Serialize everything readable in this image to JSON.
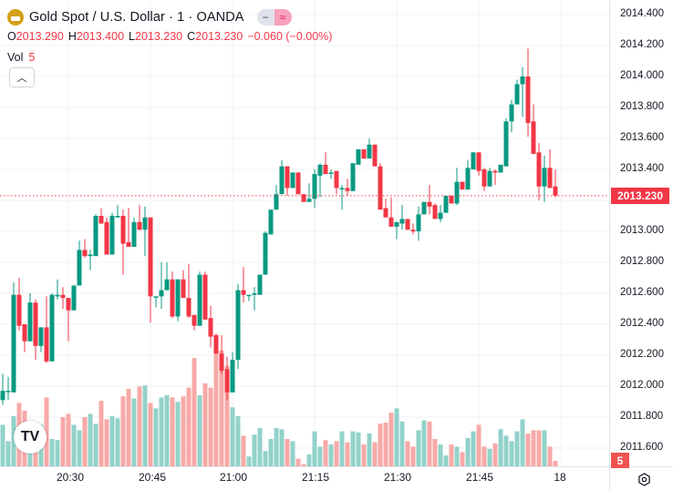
{
  "legend": {
    "title": "Gold Spot / U.S. Dollar · 1 · OANDA",
    "toggle_a": "−",
    "toggle_b": "≈",
    "ohlc": {
      "o_label": "O",
      "o": "2013.290",
      "h_label": "H",
      "h": "2013.400",
      "l_label": "L",
      "l": "2013.230",
      "c_label": "C",
      "c": "2013.230",
      "change": "−0.060 (−0.00%)"
    },
    "vol_label": "Vol",
    "vol_value": "5",
    "collapse_icon": "chevron-up-icon"
  },
  "price_axis": {
    "labels": [
      "2014.400",
      "2014.200",
      "2014.000",
      "2013.800",
      "2013.600",
      "2013.400",
      "2013.000",
      "2012.800",
      "2012.600",
      "2012.400",
      "2012.200",
      "2012.000",
      "2011.800",
      "2011.600"
    ],
    "last_price": "2013.230",
    "volume_badge": "5"
  },
  "time_axis": {
    "labels": [
      "20:30",
      "20:45",
      "21:00",
      "21:15",
      "21:30",
      "21:45",
      "18"
    ]
  },
  "logo_text": "TV",
  "colors": {
    "up": "#089981",
    "down": "#f23645",
    "vol_up": "#92d2ca",
    "vol_down": "#f7a9a7",
    "grid": "#f0f1f3"
  },
  "chart_data": {
    "type": "candlestick",
    "symbol": "Gold Spot / U.S. Dollar",
    "interval": "1",
    "ylim": [
      2011.5,
      2014.5
    ],
    "y_ticks": [
      2011.6,
      2011.8,
      2012.0,
      2012.2,
      2012.4,
      2012.6,
      2012.8,
      2013.0,
      2013.2,
      2013.4,
      2013.6,
      2013.8,
      2014.0,
      2014.2,
      2014.4
    ],
    "ohlc": [
      [
        2011.91,
        2012.08,
        2011.88,
        2011.97
      ],
      [
        2011.97,
        2012.06,
        2011.91,
        2011.97
      ],
      [
        2011.96,
        2012.67,
        2011.96,
        2012.59
      ],
      [
        2012.59,
        2012.7,
        2012.36,
        2012.39
      ],
      [
        2012.4,
        2012.4,
        2012.22,
        2012.29
      ],
      [
        2012.29,
        2012.6,
        2012.29,
        2012.54
      ],
      [
        2012.54,
        2012.56,
        2012.17,
        2012.26
      ],
      [
        2012.26,
        2012.38,
        2012.22,
        2012.38
      ],
      [
        2012.38,
        2012.58,
        2012.15,
        2012.16
      ],
      [
        2012.16,
        2012.6,
        2012.16,
        2012.59
      ],
      [
        2012.58,
        2012.69,
        2012.56,
        2012.59
      ],
      [
        2012.59,
        2012.64,
        2012.5,
        2012.57
      ],
      [
        2012.57,
        2012.57,
        2012.29,
        2012.49
      ],
      [
        2012.49,
        2012.65,
        2012.49,
        2012.65
      ],
      [
        2012.65,
        2012.94,
        2012.65,
        2012.88
      ],
      [
        2012.88,
        2012.95,
        2012.83,
        2012.84
      ],
      [
        2012.84,
        2012.88,
        2012.75,
        2012.85
      ],
      [
        2012.84,
        2013.11,
        2012.84,
        2013.1
      ],
      [
        2013.1,
        2013.15,
        2013.05,
        2013.05
      ],
      [
        2013.06,
        2013.09,
        2012.85,
        2012.85
      ],
      [
        2012.85,
        2013.12,
        2012.85,
        2013.1
      ],
      [
        2013.09,
        2013.17,
        2013.09,
        2013.1
      ],
      [
        2013.1,
        2013.14,
        2012.72,
        2012.92
      ],
      [
        2012.93,
        2013.15,
        2012.9,
        2012.9
      ],
      [
        2012.9,
        2013.09,
        2012.9,
        2013.06
      ],
      [
        2013.06,
        2013.17,
        2013.01,
        2013.01
      ],
      [
        2013.01,
        2013.16,
        2012.84,
        2013.09
      ],
      [
        2013.09,
        2013.09,
        2012.41,
        2012.58
      ],
      [
        2012.58,
        2012.58,
        2012.51,
        2012.58
      ],
      [
        2012.58,
        2012.8,
        2012.5,
        2012.62
      ],
      [
        2012.62,
        2012.8,
        2012.62,
        2012.69
      ],
      [
        2012.69,
        2012.74,
        2012.44,
        2012.45
      ],
      [
        2012.45,
        2012.69,
        2012.42,
        2012.69
      ],
      [
        2012.69,
        2012.75,
        2012.57,
        2012.57
      ],
      [
        2012.57,
        2012.79,
        2012.44,
        2012.45
      ],
      [
        2012.46,
        2012.46,
        2012.36,
        2012.39
      ],
      [
        2012.39,
        2012.74,
        2012.39,
        2012.72
      ],
      [
        2012.72,
        2012.74,
        2012.43,
        2012.43
      ],
      [
        2012.44,
        2012.52,
        2012.25,
        2012.32
      ],
      [
        2012.33,
        2012.34,
        2012.21,
        2012.21
      ],
      [
        2012.21,
        2012.33,
        2012.08,
        2012.1
      ],
      [
        2012.11,
        2012.19,
        2011.91,
        2011.96
      ],
      [
        2011.96,
        2012.22,
        2011.96,
        2012.17
      ],
      [
        2012.17,
        2012.66,
        2012.11,
        2012.62
      ],
      [
        2012.62,
        2012.77,
        2012.54,
        2012.59
      ],
      [
        2012.59,
        2012.59,
        2012.55,
        2012.59
      ],
      [
        2012.59,
        2012.64,
        2012.49,
        2012.6
      ],
      [
        2012.59,
        2012.72,
        2012.59,
        2012.72
      ],
      [
        2012.72,
        2013.0,
        2012.72,
        2012.99
      ],
      [
        2012.98,
        2013.14,
        2012.98,
        2013.14
      ],
      [
        2013.14,
        2013.3,
        2013.14,
        2013.24
      ],
      [
        2013.24,
        2013.46,
        2013.24,
        2013.42
      ],
      [
        2013.42,
        2013.42,
        2013.23,
        2013.28
      ],
      [
        2013.28,
        2013.38,
        2013.28,
        2013.38
      ],
      [
        2013.38,
        2013.38,
        2013.24,
        2013.24
      ],
      [
        2013.24,
        2013.24,
        2013.19,
        2013.19
      ],
      [
        2013.19,
        2013.31,
        2013.19,
        2013.21
      ],
      [
        2013.21,
        2013.4,
        2013.15,
        2013.37
      ],
      [
        2013.36,
        2013.44,
        2013.22,
        2013.43
      ],
      [
        2013.43,
        2013.51,
        2013.37,
        2013.37
      ],
      [
        2013.38,
        2013.4,
        2013.34,
        2013.38
      ],
      [
        2013.39,
        2013.39,
        2013.24,
        2013.28
      ],
      [
        2013.28,
        2013.3,
        2013.14,
        2013.28
      ],
      [
        2013.28,
        2013.34,
        2013.23,
        2013.26
      ],
      [
        2013.26,
        2013.44,
        2013.26,
        2013.44
      ],
      [
        2013.43,
        2013.53,
        2013.43,
        2013.53
      ],
      [
        2013.53,
        2013.53,
        2013.47,
        2013.47
      ],
      [
        2013.47,
        2013.6,
        2013.47,
        2013.56
      ],
      [
        2013.56,
        2013.56,
        2013.42,
        2013.42
      ],
      [
        2013.42,
        2013.44,
        2013.14,
        2013.14
      ],
      [
        2013.15,
        2013.21,
        2013.09,
        2013.09
      ],
      [
        2013.09,
        2013.22,
        2013.03,
        2013.03
      ],
      [
        2013.03,
        2013.06,
        2012.95,
        2013.06
      ],
      [
        2013.05,
        2013.17,
        2013.01,
        2013.08
      ],
      [
        2013.08,
        2013.08,
        2013.01,
        2013.01
      ],
      [
        2013.01,
        2013.05,
        2012.98,
        2013.0
      ],
      [
        2013.0,
        2013.16,
        2012.94,
        2013.11
      ],
      [
        2013.11,
        2013.19,
        2013.11,
        2013.19
      ],
      [
        2013.19,
        2013.3,
        2013.11,
        2013.16
      ],
      [
        2013.17,
        2013.18,
        2013.08,
        2013.08
      ],
      [
        2013.08,
        2013.17,
        2013.06,
        2013.12
      ],
      [
        2013.12,
        2013.23,
        2013.12,
        2013.23
      ],
      [
        2013.23,
        2013.23,
        2013.18,
        2013.18
      ],
      [
        2013.18,
        2013.41,
        2013.17,
        2013.32
      ],
      [
        2013.32,
        2013.32,
        2013.27,
        2013.27
      ],
      [
        2013.27,
        2013.46,
        2013.27,
        2013.41
      ],
      [
        2013.4,
        2013.51,
        2013.4,
        2013.51
      ],
      [
        2013.51,
        2013.51,
        2013.36,
        2013.39
      ],
      [
        2013.4,
        2013.41,
        2013.26,
        2013.29
      ],
      [
        2013.29,
        2013.41,
        2013.29,
        2013.39
      ],
      [
        2013.39,
        2013.4,
        2013.3,
        2013.38
      ],
      [
        2013.38,
        2013.43,
        2013.38,
        2013.43
      ],
      [
        2013.42,
        2013.73,
        2013.42,
        2013.71
      ],
      [
        2013.71,
        2013.85,
        2013.64,
        2013.82
      ],
      [
        2013.82,
        2013.98,
        2013.82,
        2013.95
      ],
      [
        2013.95,
        2014.06,
        2013.74,
        2014.0
      ],
      [
        2014.0,
        2014.18,
        2013.61,
        2013.7
      ],
      [
        2013.71,
        2013.82,
        2013.5,
        2013.5
      ],
      [
        2013.51,
        2013.57,
        2013.2,
        2013.29
      ],
      [
        2013.29,
        2013.49,
        2013.19,
        2013.41
      ],
      [
        2013.41,
        2013.53,
        2013.28,
        2013.28
      ],
      [
        2013.29,
        2013.4,
        2013.22,
        2013.23
      ]
    ],
    "volume": [
      38,
      23,
      46,
      58,
      51,
      33,
      39,
      38,
      63,
      25,
      24,
      45,
      48,
      38,
      33,
      45,
      48,
      39,
      60,
      43,
      46,
      44,
      64,
      71,
      62,
      73,
      74,
      58,
      53,
      63,
      65,
      63,
      59,
      64,
      72,
      99,
      65,
      76,
      72,
      104,
      106,
      92,
      54,
      46,
      28,
      9,
      29,
      35,
      14,
      25,
      35,
      34,
      25,
      23,
      7,
      2,
      11,
      32,
      18,
      24,
      20,
      23,
      32,
      22,
      32,
      31,
      20,
      30,
      22,
      39,
      40,
      49,
      53,
      41,
      23,
      18,
      33,
      42,
      41,
      25,
      20,
      10,
      20,
      18,
      13,
      26,
      32,
      38,
      18,
      16,
      21,
      34,
      28,
      23,
      32,
      43,
      30,
      33,
      33,
      33,
      18,
      5
    ],
    "last_price": 2013.23
  }
}
